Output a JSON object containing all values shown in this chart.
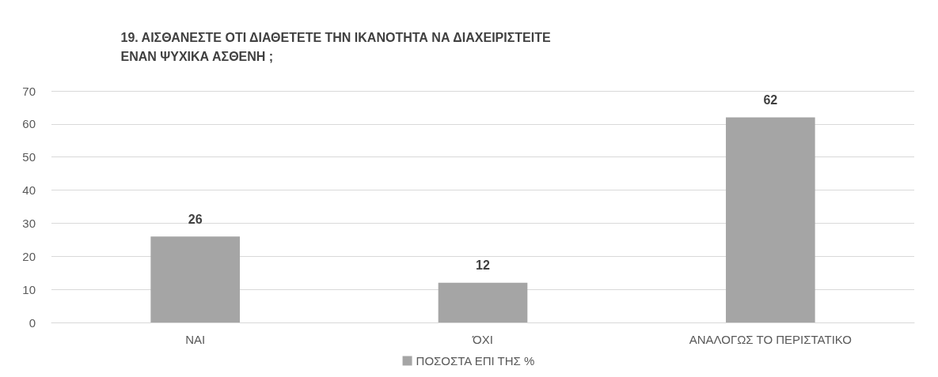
{
  "chart_data": {
    "type": "bar",
    "title": "19. ΑΙΣΘΑΝΕΣΤΕ ΟΤΙ ΔΙΑΘΕΤΕΤΕ ΤΗΝ ΙΚΑΝΟΤΗΤΑ ΝΑ ΔΙΑΧΕΙΡΙΣΤΕΙΤΕ ΕΝΑΝ ΨΥΧΙΚΑ ΑΣΘΕΝΗ ;",
    "categories": [
      "ΝΑΙ",
      "ΌΧΙ",
      "ΑΝΑΛΟΓΩΣ ΤΟ ΠΕΡΙΣΤΑΤΙΚΟ"
    ],
    "series": [
      {
        "name": "ΠΟΣΟΣΤΑ ΕΠΙ ΤΗΣ %",
        "color": "#a5a5a5",
        "values": [
          26,
          12,
          62
        ]
      }
    ],
    "ylim": [
      0,
      70
    ],
    "yticks": [
      0,
      10,
      20,
      30,
      40,
      50,
      60,
      70
    ],
    "grid": "y",
    "legend": "bottom",
    "data_labels": true
  }
}
